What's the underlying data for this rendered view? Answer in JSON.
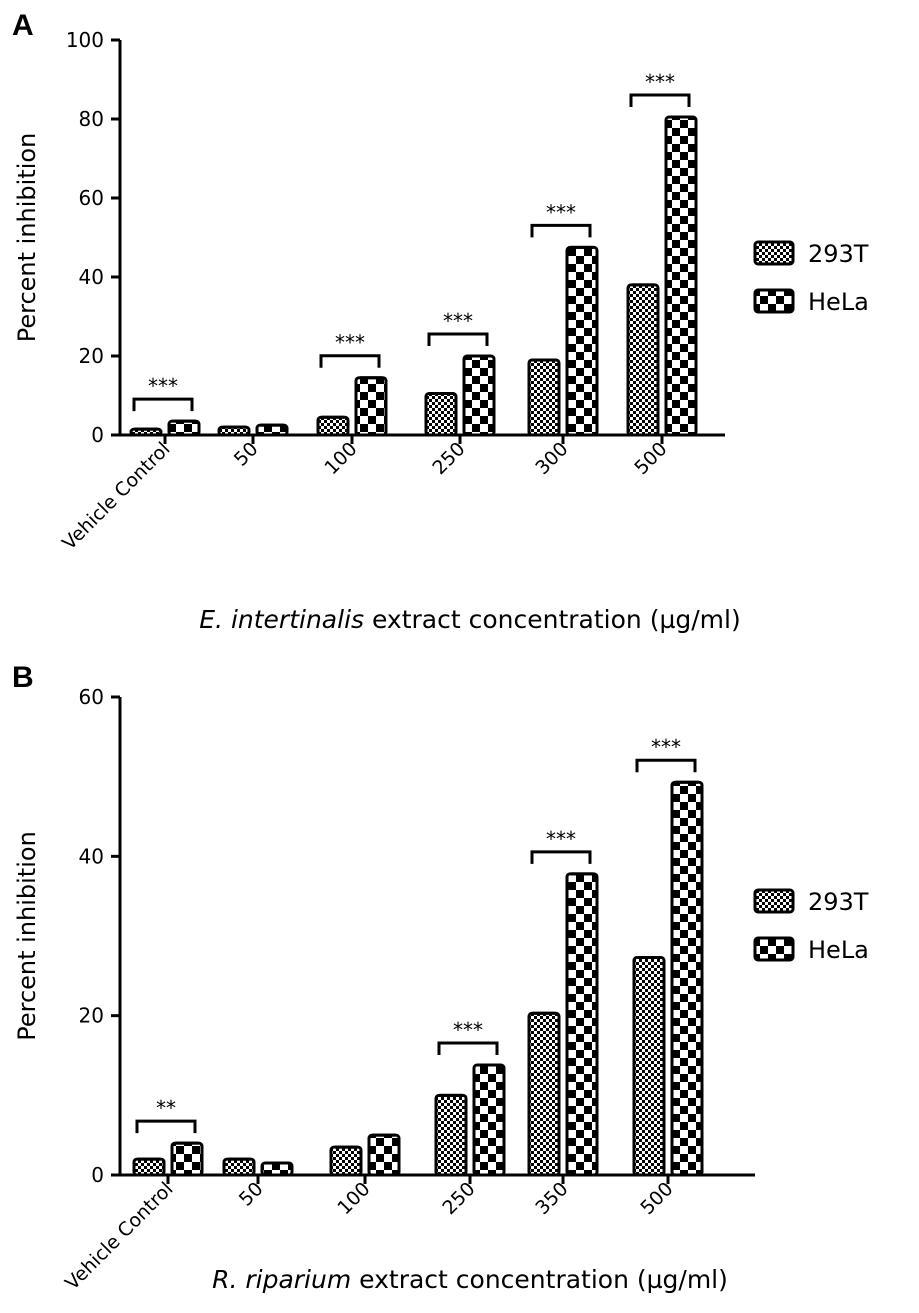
{
  "colors": {
    "ink": "#000000",
    "background": "#ffffff"
  },
  "chart_data": [
    {
      "type": "bar",
      "panel_label": "A",
      "ylabel": "Percent inhibition",
      "xlabel_italic": "E. intertinalis",
      "xlabel_rest": " extract concentration (µg/ml)",
      "ylim": [
        0,
        100
      ],
      "yticks": [
        "0",
        "20",
        "40",
        "60",
        "80",
        "100"
      ],
      "categories": [
        "Vehicle Control",
        "50",
        "100",
        "250",
        "300",
        "500"
      ],
      "series": [
        {
          "name": "293T",
          "pattern": "fine-checker",
          "values": [
            1.5,
            2,
            4.5,
            10.5,
            19,
            38
          ]
        },
        {
          "name": "HeLa",
          "pattern": "coarse-checker",
          "values": [
            3.5,
            2.5,
            14.5,
            20,
            47.5,
            80.5
          ]
        }
      ],
      "significance": [
        "***",
        "",
        "***",
        "***",
        "***",
        "***"
      ],
      "legend_position": "right"
    },
    {
      "type": "bar",
      "panel_label": "B",
      "ylabel": "Percent inhibition",
      "xlabel_italic": "R. riparium",
      "xlabel_rest": " extract concentration (µg/ml)",
      "ylim": [
        0,
        60
      ],
      "yticks": [
        "0",
        "20",
        "40",
        "60"
      ],
      "categories": [
        "Vehicle Control",
        "50",
        "100",
        "250",
        "350",
        "500"
      ],
      "series": [
        {
          "name": "293T",
          "pattern": "fine-checker",
          "values": [
            2,
            2,
            3.5,
            10,
            20.3,
            27.3
          ]
        },
        {
          "name": "HeLa",
          "pattern": "coarse-checker",
          "values": [
            4,
            1.5,
            5,
            13.8,
            37.8,
            49.3
          ]
        }
      ],
      "significance": [
        "**",
        "",
        "",
        "***",
        "***",
        "***"
      ],
      "legend_position": "right"
    }
  ]
}
